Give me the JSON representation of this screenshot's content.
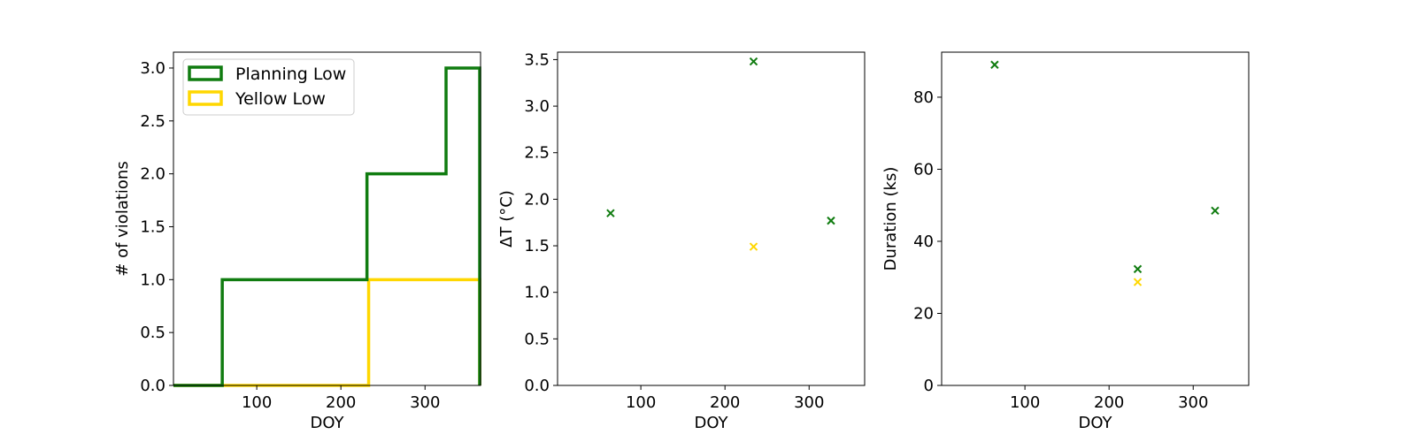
{
  "colors": {
    "planning": "#107C10",
    "yellow": "#FFD700"
  },
  "chart_data": [
    {
      "type": "line",
      "subtype": "step",
      "xlabel": "DOY",
      "ylabel": "# of violations",
      "xlim": [
        1,
        366
      ],
      "ylim": [
        0,
        3.15
      ],
      "xticks": [
        100,
        200,
        300
      ],
      "xtick_labels": [
        "100",
        "200",
        "300"
      ],
      "yticks": [
        0,
        0.5,
        1,
        1.5,
        2,
        2.5,
        3
      ],
      "ytick_labels": [
        "0.0",
        "0.5",
        "1.0",
        "1.5",
        "2.0",
        "2.5",
        "3.0"
      ],
      "legend": {
        "position": "top-left",
        "entries": [
          "Planning Low",
          "Yellow Low"
        ]
      },
      "series": [
        {
          "name": "Planning Low",
          "color": "#107C10",
          "steps": [
            [
              1,
              0
            ],
            [
              59,
              1
            ],
            [
              231,
              2
            ],
            [
              325,
              3
            ],
            [
              365,
              0
            ]
          ]
        },
        {
          "name": "Yellow Low",
          "color": "#FFD700",
          "steps": [
            [
              1,
              0
            ],
            [
              233,
              1
            ],
            [
              365,
              0
            ]
          ]
        }
      ]
    },
    {
      "type": "scatter",
      "xlabel": "DOY",
      "ylabel": "ΔT (°C)",
      "xlim": [
        1,
        366
      ],
      "ylim": [
        0,
        3.58
      ],
      "xticks": [
        100,
        200,
        300
      ],
      "xtick_labels": [
        "100",
        "200",
        "300"
      ],
      "yticks": [
        0,
        0.5,
        1,
        1.5,
        2,
        2.5,
        3,
        3.5
      ],
      "ytick_labels": [
        "0.0",
        "0.5",
        "1.0",
        "1.5",
        "2.0",
        "2.5",
        "3.0",
        "3.5"
      ],
      "series": [
        {
          "color": "#107C10",
          "points": [
            [
              64,
              1.85
            ],
            [
              234,
              3.48
            ],
            [
              326,
              1.77
            ]
          ]
        },
        {
          "color": "#FFD700",
          "points": [
            [
              234,
              1.49
            ]
          ]
        }
      ]
    },
    {
      "type": "scatter",
      "xlabel": "DOY",
      "ylabel": "Duration (ks)",
      "xlim": [
        1,
        366
      ],
      "ylim": [
        0,
        92.5
      ],
      "xticks": [
        100,
        200,
        300
      ],
      "xtick_labels": [
        "100",
        "200",
        "300"
      ],
      "yticks": [
        0,
        20,
        40,
        60,
        80
      ],
      "ytick_labels": [
        "0",
        "20",
        "40",
        "60",
        "80"
      ],
      "series": [
        {
          "color": "#107C10",
          "points": [
            [
              64,
              89
            ],
            [
              234,
              32.3
            ],
            [
              326,
              48.5
            ]
          ]
        },
        {
          "color": "#FFD700",
          "points": [
            [
              234,
              28.7
            ]
          ]
        }
      ]
    }
  ]
}
